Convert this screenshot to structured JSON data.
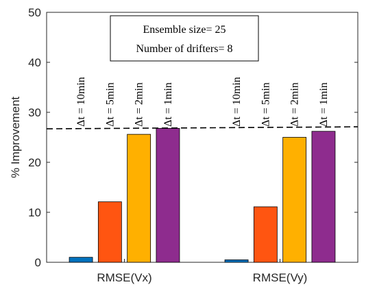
{
  "chart_data": {
    "type": "bar",
    "ylabel": "% Improvement",
    "ylim": [
      0,
      50
    ],
    "yticks": [
      0,
      10,
      20,
      30,
      40,
      50
    ],
    "grid": false,
    "categories": [
      "RMSE(Vx)",
      "RMSE(Vy)"
    ],
    "series": [
      {
        "name": "Δt = 10min",
        "color": "#0072BD",
        "values": [
          1.0,
          0.5
        ]
      },
      {
        "name": "Δt = 5min",
        "color": "#FF5511",
        "values": [
          12.1,
          11.1
        ]
      },
      {
        "name": "Δt = 2min",
        "color": "#FFB000",
        "values": [
          25.6,
          25.0
        ]
      },
      {
        "name": "Δt = 1min",
        "color": "#8E2C8E",
        "values": [
          26.8,
          26.2
        ]
      }
    ],
    "reference_line": {
      "style": "dashed",
      "y_start": 26.7,
      "y_end": 27.1
    },
    "annotation_box": [
      "Ensemble size= 25",
      "Number of drifters= 8"
    ]
  }
}
